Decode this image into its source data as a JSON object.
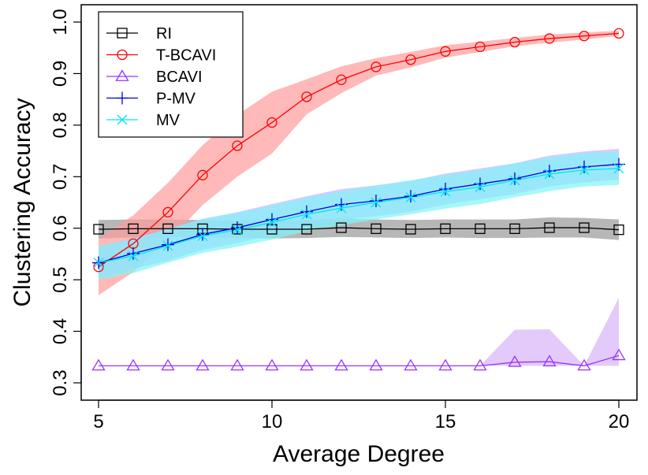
{
  "chart_data": {
    "type": "line",
    "title": "",
    "xlabel": "Average Degree",
    "ylabel": "Clustering Accuracy",
    "xlim": [
      4.5,
      20.5
    ],
    "ylim": [
      0.3,
      1.03
    ],
    "xticks": [
      5,
      10,
      15,
      20
    ],
    "yticks": [
      0.3,
      0.4,
      0.5,
      0.6,
      0.7,
      0.8,
      0.9,
      1.0
    ],
    "ytick_labels": [
      "0.3",
      "0.4",
      "0.5",
      "0.6",
      "0.7",
      "0.8",
      "0.9",
      "1.0"
    ],
    "legend_position": "top-left",
    "x": [
      5,
      6,
      7,
      8,
      9,
      10,
      11,
      12,
      13,
      14,
      15,
      16,
      17,
      18,
      19,
      20
    ],
    "series": [
      {
        "name": "RI",
        "color": "#000000",
        "band_color": "#999999",
        "marker": "square",
        "values": [
          0.598,
          0.599,
          0.599,
          0.599,
          0.598,
          0.598,
          0.598,
          0.601,
          0.599,
          0.598,
          0.599,
          0.599,
          0.599,
          0.601,
          0.601,
          0.597
        ],
        "lower": [
          0.58,
          0.582,
          0.582,
          0.583,
          0.581,
          0.58,
          0.581,
          0.583,
          0.582,
          0.581,
          0.582,
          0.581,
          0.581,
          0.582,
          0.582,
          0.577
        ],
        "upper": [
          0.616,
          0.617,
          0.617,
          0.616,
          0.615,
          0.616,
          0.616,
          0.619,
          0.617,
          0.616,
          0.617,
          0.617,
          0.617,
          0.621,
          0.62,
          0.617
        ]
      },
      {
        "name": "T-BCAVI",
        "color": "#ff0000",
        "band_color": "#ff9b9b",
        "marker": "circle",
        "values": [
          0.525,
          0.57,
          0.631,
          0.703,
          0.76,
          0.805,
          0.855,
          0.888,
          0.913,
          0.927,
          0.943,
          0.952,
          0.961,
          0.968,
          0.973,
          0.978
        ],
        "lower": [
          0.47,
          0.515,
          0.574,
          0.645,
          0.7,
          0.745,
          0.821,
          0.862,
          0.896,
          0.912,
          0.931,
          0.942,
          0.953,
          0.96,
          0.966,
          0.973
        ],
        "upper": [
          0.58,
          0.625,
          0.688,
          0.761,
          0.82,
          0.865,
          0.889,
          0.914,
          0.93,
          0.942,
          0.955,
          0.962,
          0.969,
          0.976,
          0.98,
          0.983
        ]
      },
      {
        "name": "BCAVI",
        "color": "#9933ff",
        "band_color": "#d7b4fa",
        "marker": "triangle",
        "values": [
          0.333,
          0.333,
          0.333,
          0.333,
          0.333,
          0.333,
          0.333,
          0.333,
          0.333,
          0.333,
          0.333,
          0.333,
          0.34,
          0.341,
          0.333,
          0.353
        ],
        "lower": [
          0.333,
          0.333,
          0.333,
          0.333,
          0.333,
          0.333,
          0.333,
          0.333,
          0.333,
          0.333,
          0.333,
          0.333,
          0.333,
          0.333,
          0.333,
          0.333
        ],
        "upper": [
          0.333,
          0.333,
          0.333,
          0.333,
          0.333,
          0.333,
          0.333,
          0.333,
          0.333,
          0.333,
          0.333,
          0.333,
          0.403,
          0.404,
          0.333,
          0.465
        ]
      },
      {
        "name": "P-MV",
        "color": "#0000dd",
        "band_color": "#c8b4ff",
        "marker": "plus",
        "values": [
          0.533,
          0.551,
          0.568,
          0.588,
          0.601,
          0.617,
          0.632,
          0.646,
          0.653,
          0.662,
          0.676,
          0.686,
          0.696,
          0.711,
          0.719,
          0.724
        ],
        "lower": [
          0.503,
          0.521,
          0.537,
          0.558,
          0.571,
          0.587,
          0.602,
          0.616,
          0.623,
          0.632,
          0.646,
          0.656,
          0.666,
          0.681,
          0.689,
          0.694
        ],
        "upper": [
          0.563,
          0.581,
          0.598,
          0.618,
          0.631,
          0.647,
          0.662,
          0.676,
          0.683,
          0.692,
          0.706,
          0.716,
          0.726,
          0.741,
          0.749,
          0.754
        ]
      },
      {
        "name": "MV",
        "color": "#00e5ee",
        "band_color": "#7ff5f8",
        "marker": "x",
        "values": [
          0.533,
          0.546,
          0.566,
          0.585,
          0.597,
          0.611,
          0.627,
          0.639,
          0.65,
          0.66,
          0.671,
          0.68,
          0.693,
          0.705,
          0.713,
          0.716
        ],
        "lower": [
          0.5,
          0.513,
          0.533,
          0.552,
          0.564,
          0.578,
          0.594,
          0.606,
          0.617,
          0.627,
          0.638,
          0.647,
          0.66,
          0.672,
          0.681,
          0.684
        ],
        "upper": [
          0.566,
          0.579,
          0.599,
          0.618,
          0.63,
          0.644,
          0.66,
          0.672,
          0.683,
          0.693,
          0.704,
          0.713,
          0.726,
          0.738,
          0.746,
          0.748
        ]
      }
    ]
  }
}
